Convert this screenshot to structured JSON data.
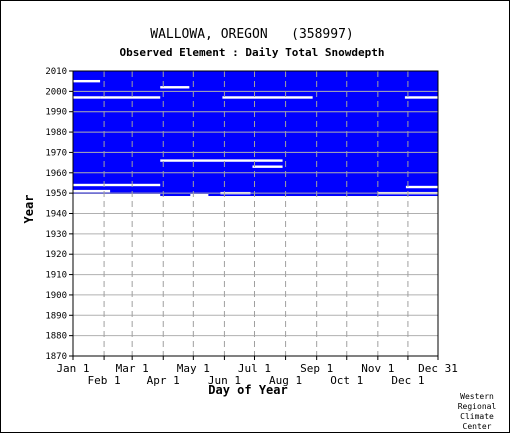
{
  "chart_data": {
    "type": "heatmap",
    "title": "WALLOWA, OREGON   (358997)",
    "subtitle": "Observed Element : Daily Total Snowdepth",
    "xlabel": "Day of Year",
    "ylabel": "Year",
    "x_range_days": [
      1,
      365
    ],
    "y_range_years": [
      1870,
      2010
    ],
    "y_ticks": [
      1870,
      1880,
      1890,
      1900,
      1910,
      1920,
      1930,
      1940,
      1950,
      1960,
      1970,
      1980,
      1990,
      2000,
      2010
    ],
    "x_ticks_upper": [
      {
        "label": "Jan 1",
        "day": 1
      },
      {
        "label": "Mar 1",
        "day": 60
      },
      {
        "label": "May 1",
        "day": 121
      },
      {
        "label": "Jul 1",
        "day": 182
      },
      {
        "label": "Sep 1",
        "day": 244
      },
      {
        "label": "Nov 1",
        "day": 305
      },
      {
        "label": "Dec 31",
        "day": 365
      }
    ],
    "x_ticks_lower": [
      {
        "label": "Feb 1",
        "day": 32
      },
      {
        "label": "Apr 1",
        "day": 91
      },
      {
        "label": "Jun 1",
        "day": 152
      },
      {
        "label": "Aug 1",
        "day": 213
      },
      {
        "label": "Oct 1",
        "day": 274
      },
      {
        "label": "Dec 1",
        "day": 335
      }
    ],
    "grid": true,
    "record_fill": {
      "start_year": 1948,
      "end_year": 2010,
      "color": "#0000ff"
    },
    "missing_segments": [
      {
        "year": 2005,
        "start_day": 1,
        "end_day": 28
      },
      {
        "year": 2002,
        "start_day": 88,
        "end_day": 117
      },
      {
        "year": 1997,
        "start_day": 1,
        "end_day": 28
      },
      {
        "year": 1997,
        "start_day": 28,
        "end_day": 88
      },
      {
        "year": 1997,
        "start_day": 150,
        "end_day": 240
      },
      {
        "year": 1997,
        "start_day": 332,
        "end_day": 365
      },
      {
        "year": 1966,
        "start_day": 88,
        "end_day": 210
      },
      {
        "year": 1963,
        "start_day": 180,
        "end_day": 210
      },
      {
        "year": 1954,
        "start_day": 1,
        "end_day": 88
      },
      {
        "year": 1953,
        "start_day": 333,
        "end_day": 365
      },
      {
        "year": 1951,
        "start_day": 1,
        "end_day": 38
      },
      {
        "year": 1950,
        "start_day": 148,
        "end_day": 178
      },
      {
        "year": 1950,
        "start_day": 305,
        "end_day": 365
      },
      {
        "year": 1949,
        "start_day": 1,
        "end_day": 88
      },
      {
        "year": 1949,
        "start_day": 118,
        "end_day": 136
      },
      {
        "year": 1948,
        "start_day": 1,
        "end_day": 365
      }
    ],
    "source_credit": [
      "Western",
      "Regional",
      "Climate",
      "Center"
    ]
  }
}
